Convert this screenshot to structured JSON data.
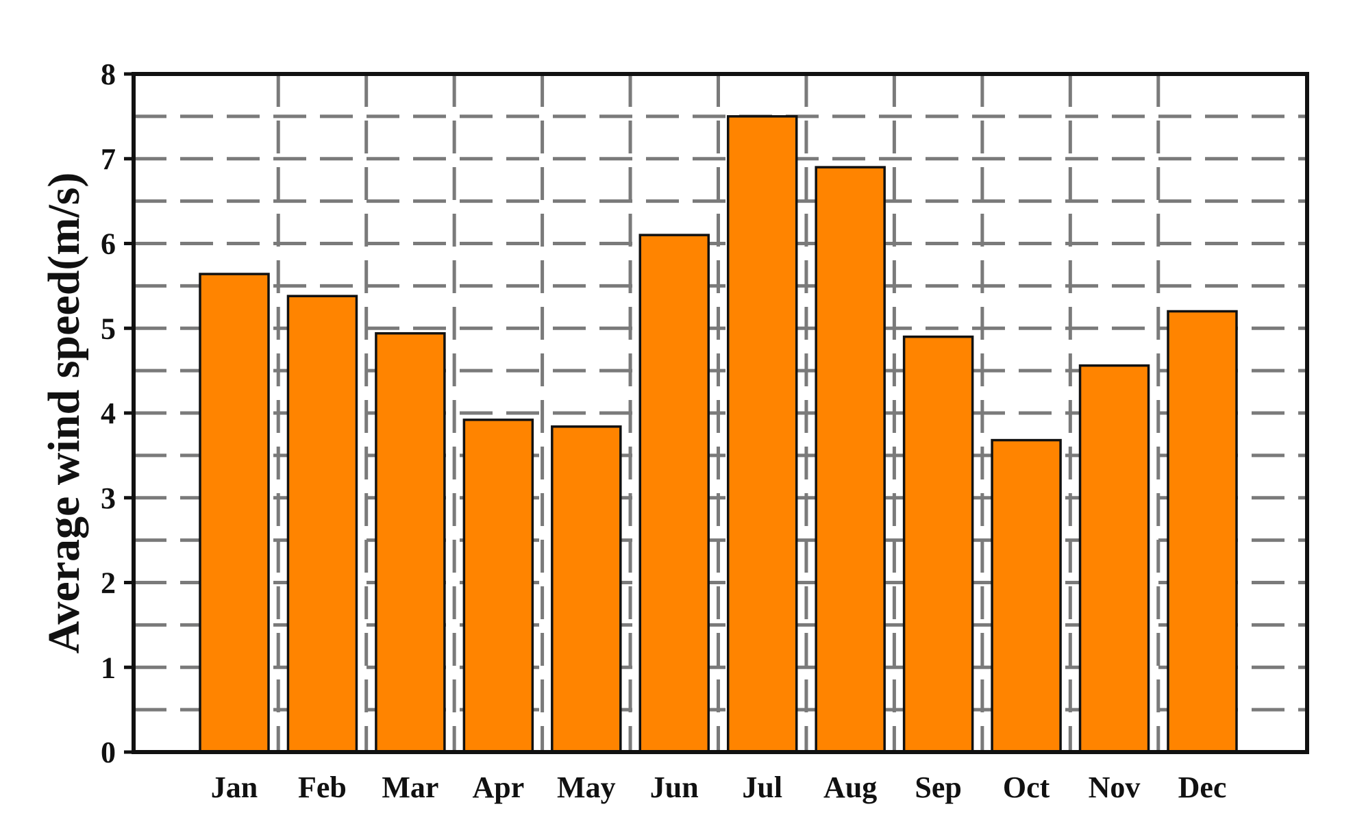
{
  "chart_data": {
    "type": "bar",
    "ylabel": "Average wind speed(m/s)",
    "xlabel": "",
    "title": "",
    "categories": [
      "Jan",
      "Feb",
      "Mar",
      "Apr",
      "May",
      "Jun",
      "Jul",
      "Aug",
      "Sep",
      "Oct",
      "Nov",
      "Dec"
    ],
    "values": [
      5.64,
      5.38,
      4.94,
      3.92,
      3.84,
      6.1,
      7.5,
      6.9,
      4.9,
      3.68,
      4.56,
      5.2
    ],
    "ylim": [
      0,
      8
    ],
    "yticks": [
      "0",
      "1",
      "2",
      "3",
      "4",
      "5",
      "6",
      "7",
      "8"
    ],
    "grid": "dashed",
    "bar_color": "#ff8400",
    "bar_edge_color": "#111111",
    "grid_color": "#7a7a7a"
  }
}
